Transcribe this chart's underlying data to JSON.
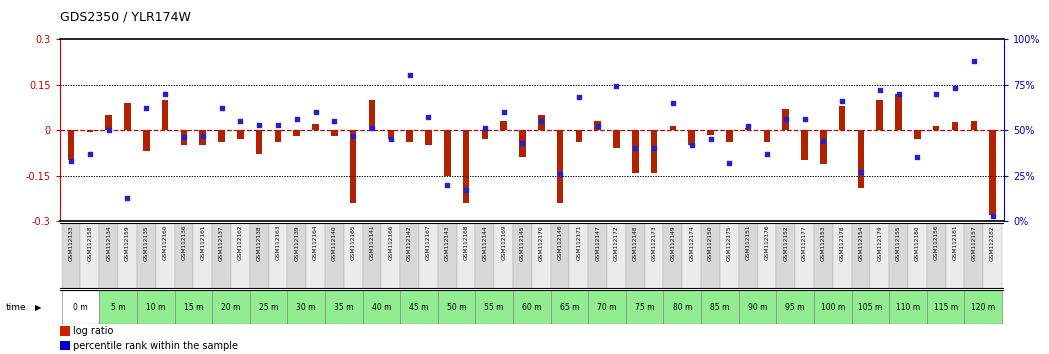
{
  "title": "GDS2350 / YLR174W",
  "gsm_labels": [
    "GSM112133",
    "GSM112158",
    "GSM112134",
    "GSM112159",
    "GSM112135",
    "GSM112160",
    "GSM112136",
    "GSM112161",
    "GSM112137",
    "GSM112162",
    "GSM112138",
    "GSM112163",
    "GSM112139",
    "GSM112164",
    "GSM112140",
    "GSM112165",
    "GSM112141",
    "GSM112166",
    "GSM112142",
    "GSM112167",
    "GSM112143",
    "GSM112168",
    "GSM112144",
    "GSM112169",
    "GSM112145",
    "GSM112170",
    "GSM112146",
    "GSM112171",
    "GSM112147",
    "GSM112172",
    "GSM112148",
    "GSM112173",
    "GSM112149",
    "GSM112174",
    "GSM112150",
    "GSM112175",
    "GSM112151",
    "GSM112176",
    "GSM112152",
    "GSM112177",
    "GSM112153",
    "GSM112178",
    "GSM112154",
    "GSM112179",
    "GSM112155",
    "GSM112180",
    "GSM112156",
    "GSM112181",
    "GSM112157",
    "GSM112182"
  ],
  "time_labels": [
    "0 m",
    "5 m",
    "10 m",
    "15 m",
    "20 m",
    "25 m",
    "30 m",
    "35 m",
    "40 m",
    "45 m",
    "50 m",
    "55 m",
    "60 m",
    "65 m",
    "70 m",
    "75 m",
    "80 m",
    "85 m",
    "90 m",
    "95 m",
    "100 m",
    "105 m",
    "110 m",
    "115 m",
    "120 m"
  ],
  "log_ratio": [
    -0.1,
    -0.005,
    0.05,
    0.09,
    -0.07,
    0.1,
    -0.05,
    -0.05,
    -0.04,
    -0.03,
    -0.08,
    -0.04,
    -0.02,
    0.02,
    -0.02,
    -0.24,
    0.1,
    -0.03,
    -0.04,
    -0.05,
    -0.15,
    -0.24,
    -0.03,
    0.03,
    -0.09,
    0.05,
    -0.24,
    -0.04,
    0.03,
    -0.06,
    -0.14,
    -0.14,
    0.015,
    -0.05,
    -0.015,
    -0.04,
    0.008,
    -0.04,
    0.07,
    -0.1,
    -0.11,
    0.08,
    -0.19,
    0.1,
    0.12,
    -0.03,
    0.015,
    0.025,
    0.03,
    -0.28
  ],
  "percentile": [
    33,
    37,
    50,
    13,
    62,
    70,
    46,
    47,
    62,
    55,
    53,
    53,
    56,
    60,
    55,
    47,
    51,
    45,
    80,
    57,
    20,
    17,
    51,
    60,
    43,
    55,
    26,
    68,
    52,
    74,
    40,
    40,
    65,
    42,
    45,
    32,
    52,
    37,
    56,
    56,
    44,
    66,
    27,
    72,
    70,
    35,
    70,
    73,
    88,
    3
  ],
  "ylim_left": [
    -0.3,
    0.3
  ],
  "ylim_right": [
    0,
    100
  ],
  "bar_color": "#b22200",
  "dot_color": "#2222cc",
  "hline_color": "#cc0000",
  "dotted_line_color": "#000000",
  "bg_color": "#ffffff",
  "plot_bg": "#ffffff",
  "gsm_row_color_even": "#d8d8d8",
  "gsm_row_color_odd": "#ececec",
  "time_color_0": "#ffffff",
  "time_color_rest": "#90ee90",
  "title_color": "#000000",
  "axis_left_color": "#cc0000",
  "axis_right_color": "#0000cc",
  "legend_bar_color": "#cc2200",
  "legend_dot_color": "#0000cc"
}
